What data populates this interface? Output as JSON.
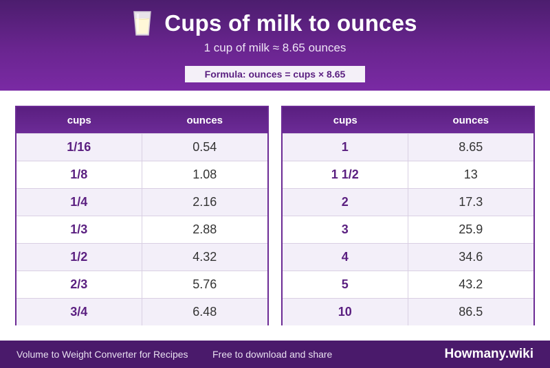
{
  "header": {
    "title": "Cups of milk to ounces",
    "icon": "milk-glass-icon",
    "subtitle": "1 cup of milk ≈ 8.65 ounces",
    "formula": "Formula: ounces = cups × 8.65"
  },
  "tables": [
    {
      "headers": [
        "cups",
        "ounces"
      ],
      "rows": [
        [
          "1/16",
          "0.54"
        ],
        [
          "1/8",
          "1.08"
        ],
        [
          "1/4",
          "2.16"
        ],
        [
          "1/3",
          "2.88"
        ],
        [
          "1/2",
          "4.32"
        ],
        [
          "2/3",
          "5.76"
        ],
        [
          "3/4",
          "6.48"
        ]
      ]
    },
    {
      "headers": [
        "cups",
        "ounces"
      ],
      "rows": [
        [
          "1",
          "8.65"
        ],
        [
          "1 1/2",
          "13"
        ],
        [
          "2",
          "17.3"
        ],
        [
          "3",
          "25.9"
        ],
        [
          "4",
          "34.6"
        ],
        [
          "5",
          "43.2"
        ],
        [
          "10",
          "86.5"
        ]
      ]
    }
  ],
  "footer": {
    "left_text": "Volume to Weight Converter for Recipes",
    "middle_text": "Free to download and share",
    "brand": "Howmany.wiki"
  },
  "colors": {
    "header_purple": "#6a2590",
    "accent_purple": "#5a1f80",
    "footer_purple": "#4a1a6b"
  }
}
